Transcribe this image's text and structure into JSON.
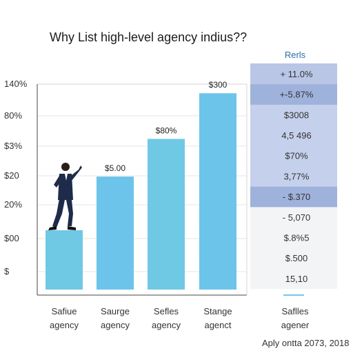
{
  "title": "Why List high-level agency indius??",
  "chart_data": {
    "type": "bar",
    "categories": [
      "Safiue\nagency",
      "Saurge\nagency",
      "Sefles\nagency",
      "Stange\nagenct"
    ],
    "values": [
      52,
      99,
      132,
      172
    ],
    "data_labels": [
      "",
      "$5.00",
      "$80%",
      "$300"
    ],
    "y_tick_labels": [
      "140%",
      "80%",
      "$3%",
      "$20",
      "20%",
      "$00",
      "$"
    ],
    "ylim": [
      0,
      180
    ],
    "grid": true,
    "colors": {
      "bar": "#6fc9e5",
      "bar_alt": "#6cc4ea"
    }
  },
  "panel": {
    "header": "Rerls",
    "rows": [
      {
        "text": "+ 11.0%",
        "shade": "dark"
      },
      {
        "text": "+-5.87%",
        "shade": "darker"
      },
      {
        "text": "$3008",
        "shade": "mid"
      },
      {
        "text": "4,5 496",
        "shade": "mid"
      },
      {
        "text": "$70%",
        "shade": "mid"
      },
      {
        "text": "3,77%",
        "shade": "mid"
      },
      {
        "text": "- $.370",
        "shade": "darker"
      },
      {
        "text": "- 5,070",
        "shade": "light"
      },
      {
        "text": "$.8%5",
        "shade": "light"
      },
      {
        "text": "$.500",
        "shade": "light"
      },
      {
        "text": "15,10",
        "shade": "light"
      }
    ],
    "footer_label": "Saflles\nagener",
    "colors": {
      "dark": "#b9c6e6",
      "darker": "#9fb2dc",
      "mid": "#c5d0ec",
      "light": "#f3f4f6"
    }
  },
  "footer": "Aply ontta 2073, 2018"
}
